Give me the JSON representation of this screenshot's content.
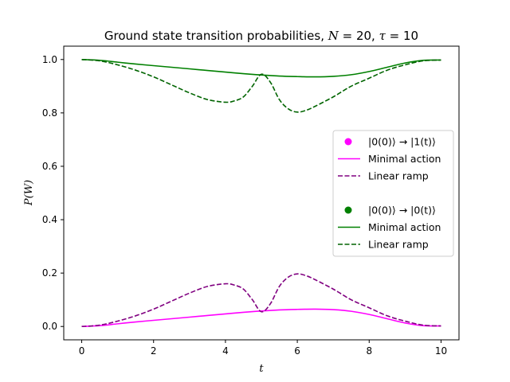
{
  "chart_data": {
    "type": "line",
    "title": "Ground state transition probabilities, N = 20, τ = 10",
    "title_parts": {
      "prefix": "Ground state transition probabilities, ",
      "n_symbol": "N",
      "n_value": " = 20, ",
      "tau_symbol": "τ",
      "tau_value": " = 10"
    },
    "xlabel": "t",
    "ylabel": "P(W)",
    "xlim": [
      -0.5,
      10.5
    ],
    "ylim": [
      -0.05,
      1.05
    ],
    "xticks": [
      0,
      2,
      4,
      6,
      8,
      10
    ],
    "xtick_labels": [
      "0",
      "2",
      "4",
      "6",
      "8",
      "10"
    ],
    "yticks": [
      0.0,
      0.2,
      0.4,
      0.6,
      0.8,
      1.0
    ],
    "ytick_labels": [
      "0.0",
      "0.2",
      "0.4",
      "0.6",
      "0.8",
      "1.0"
    ],
    "grid": false,
    "legend_position": "center-right",
    "series": [
      {
        "group": "|0(0)⟩ → |1(t)⟩",
        "name": "Minimal action",
        "style": "solid",
        "color": "#ff00ff",
        "x": [
          0,
          0.5,
          1,
          1.5,
          2,
          2.5,
          3,
          3.5,
          4,
          4.5,
          5,
          5.5,
          6,
          6.5,
          7,
          7.5,
          8,
          8.5,
          9,
          9.5,
          10
        ],
        "y": [
          0.0,
          0.003,
          0.01,
          0.017,
          0.023,
          0.029,
          0.035,
          0.041,
          0.047,
          0.053,
          0.058,
          0.062,
          0.064,
          0.065,
          0.063,
          0.057,
          0.045,
          0.029,
          0.013,
          0.003,
          0.002
        ]
      },
      {
        "group": "|0(0)⟩ → |1(t)⟩",
        "name": "Linear ramp",
        "style": "dashed",
        "color": "#800080",
        "x": [
          0,
          0.5,
          1,
          1.5,
          2,
          2.5,
          3,
          3.5,
          4,
          4.25,
          4.5,
          4.75,
          5,
          5.25,
          5.5,
          5.75,
          6,
          6.25,
          6.5,
          7,
          7.5,
          8,
          8.5,
          9,
          9.5,
          10
        ],
        "y": [
          0.0,
          0.005,
          0.02,
          0.04,
          0.065,
          0.095,
          0.125,
          0.15,
          0.16,
          0.155,
          0.14,
          0.1,
          0.055,
          0.085,
          0.15,
          0.185,
          0.197,
          0.19,
          0.175,
          0.14,
          0.1,
          0.07,
          0.04,
          0.02,
          0.005,
          0.002
        ]
      },
      {
        "group": "|0(0)⟩ → |0(t)⟩",
        "name": "Minimal action",
        "style": "solid",
        "color": "#008000",
        "x": [
          0,
          0.5,
          1,
          1.5,
          2,
          2.5,
          3,
          3.5,
          4,
          4.5,
          5,
          5.5,
          6,
          6.5,
          7,
          7.5,
          8,
          8.5,
          9,
          9.5,
          10
        ],
        "y": [
          1.0,
          0.997,
          0.99,
          0.983,
          0.977,
          0.971,
          0.965,
          0.959,
          0.953,
          0.947,
          0.942,
          0.938,
          0.936,
          0.935,
          0.937,
          0.943,
          0.955,
          0.971,
          0.987,
          0.997,
          0.998
        ]
      },
      {
        "group": "|0(0)⟩ → |0(t)⟩",
        "name": "Linear ramp",
        "style": "dashed",
        "color": "#006400",
        "x": [
          0,
          0.5,
          1,
          1.5,
          2,
          2.5,
          3,
          3.5,
          4,
          4.25,
          4.5,
          4.75,
          5,
          5.25,
          5.5,
          5.75,
          6,
          6.25,
          6.5,
          7,
          7.5,
          8,
          8.5,
          9,
          9.5,
          10
        ],
        "y": [
          1.0,
          0.995,
          0.98,
          0.96,
          0.935,
          0.905,
          0.875,
          0.85,
          0.84,
          0.845,
          0.86,
          0.9,
          0.945,
          0.915,
          0.85,
          0.815,
          0.803,
          0.81,
          0.825,
          0.86,
          0.9,
          0.93,
          0.96,
          0.98,
          0.995,
          0.998
        ]
      }
    ],
    "legend": [
      {
        "kind": "marker",
        "label": "|0(0)⟩ → |1(t)⟩",
        "color": "#ff00ff"
      },
      {
        "kind": "line",
        "style": "solid",
        "label": "Minimal action",
        "color": "#ff00ff"
      },
      {
        "kind": "line",
        "style": "dashed",
        "label": "Linear ramp",
        "color": "#800080"
      },
      {
        "kind": "spacer",
        "label": ""
      },
      {
        "kind": "marker",
        "label": "|0(0)⟩ → |0(t)⟩",
        "color": "#008000"
      },
      {
        "kind": "line",
        "style": "solid",
        "label": "Minimal action",
        "color": "#008000"
      },
      {
        "kind": "line",
        "style": "dashed",
        "label": "Linear ramp",
        "color": "#006400"
      }
    ]
  }
}
